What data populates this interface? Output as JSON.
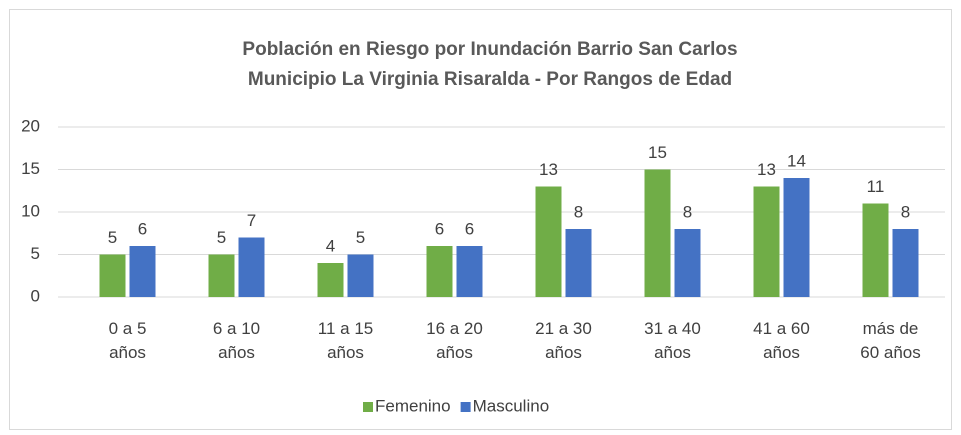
{
  "chart_data": {
    "type": "bar",
    "title": [
      "Población en Riesgo por Inundación Barrio San Carlos",
      "Municipio La Virginia Risaralda - Por Rangos de Edad"
    ],
    "categories": [
      "0 a 5 años",
      "6 a 10 años",
      "11 a 15 años",
      "16 a 20 años",
      "21 a 30 años",
      "31 a 40 años",
      "41 a 60 años",
      "más de 60 años"
    ],
    "series": [
      {
        "name": "Femenino",
        "color": "#70ad47",
        "values": [
          5,
          5,
          4,
          6,
          13,
          15,
          13,
          11
        ]
      },
      {
        "name": "Masculino",
        "color": "#4472c4",
        "values": [
          6,
          7,
          5,
          6,
          8,
          8,
          14,
          8
        ]
      }
    ],
    "ylim": [
      0,
      20
    ],
    "yticks": [
      0,
      5,
      10,
      15,
      20
    ],
    "grid": true,
    "legend": "bottom"
  }
}
